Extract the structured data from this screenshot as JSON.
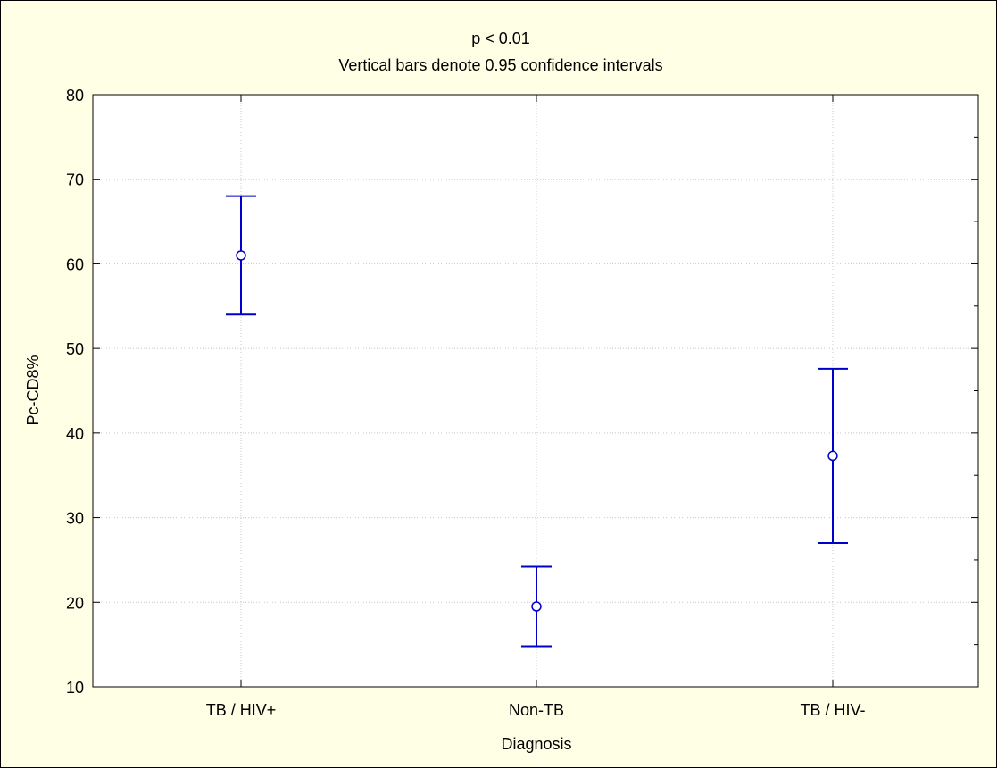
{
  "chart_data": {
    "type": "scatter",
    "title": "p < 0.01",
    "subtitle": "Vertical bars denote 0.95 confidence intervals",
    "xlabel": "Diagnosis",
    "ylabel": "Pc-CD8%",
    "categories": [
      "TB / HIV+",
      "Non-TB",
      "TB / HIV-"
    ],
    "series": [
      {
        "means": [
          61.0,
          19.5,
          37.3
        ],
        "ci_lower": [
          54.0,
          14.8,
          27.0
        ],
        "ci_upper": [
          68.0,
          24.2,
          47.6
        ]
      }
    ],
    "ylim": [
      10,
      80
    ],
    "yticks": [
      10,
      20,
      30,
      40,
      50,
      60,
      70,
      80
    ],
    "grid": true,
    "legend": "none",
    "colors": {
      "series": "#0000cc",
      "background": "#ffffe6",
      "plot_area": "#ffffff",
      "grid": "#c8c8c8"
    }
  }
}
